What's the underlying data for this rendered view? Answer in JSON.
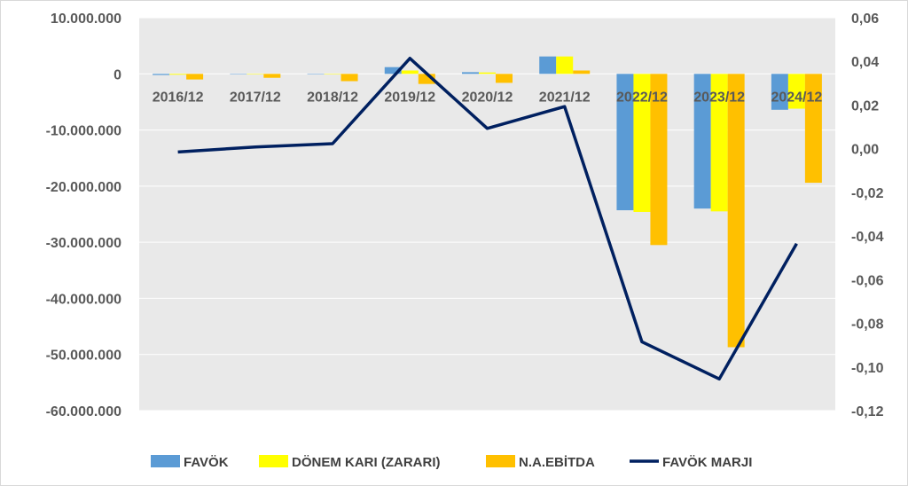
{
  "chart_data": {
    "type": "bar",
    "categories": [
      "2016/12",
      "2017/12",
      "2018/12",
      "2019/12",
      "2020/12",
      "2021/12",
      "2022/12",
      "2023/12",
      "2024/12"
    ],
    "series": [
      {
        "name": "FAVÖK",
        "type": "bar",
        "axis": "left",
        "color": "#5B9BD5",
        "values": [
          -200000,
          0,
          0,
          1200000,
          300000,
          3100000,
          -24300000,
          -24000000,
          -6400000
        ]
      },
      {
        "name": "DÖNEM KARI (ZARARI)",
        "type": "bar",
        "axis": "left",
        "color": "#FFFF00",
        "values": [
          -150000,
          0,
          0,
          600000,
          250000,
          3100000,
          -24600000,
          -24500000,
          -6200000
        ]
      },
      {
        "name": "N.A.EBİTDA",
        "type": "bar",
        "axis": "left",
        "color": "#FFC000",
        "values": [
          -1000000,
          -700000,
          -1300000,
          -1800000,
          -1600000,
          600000,
          -30500000,
          -48700000,
          -19400000
        ]
      },
      {
        "name": "FAVÖK MARJI",
        "type": "line",
        "axis": "right",
        "color": "#002060",
        "values": [
          -0.0015,
          0.0008,
          0.0023,
          0.0414,
          0.0093,
          0.0193,
          -0.0885,
          -0.1055,
          -0.0435
        ]
      }
    ],
    "y_left": {
      "ylim": [
        -60000000,
        10000000
      ],
      "ticks": [
        10000000,
        0,
        -10000000,
        -20000000,
        -30000000,
        -40000000,
        -50000000,
        -60000000
      ],
      "tick_labels": [
        "10.000.000",
        "0",
        "-10.000.000",
        "-20.000.000",
        "-30.000.000",
        "-40.000.000",
        "-50.000.000",
        "-60.000.000"
      ]
    },
    "y_right": {
      "ylim": [
        -0.12,
        0.06
      ],
      "ticks": [
        0.06,
        0.04,
        0.02,
        0.0,
        -0.02,
        -0.04,
        -0.06,
        -0.08,
        -0.1,
        -0.12
      ],
      "tick_labels": [
        "0,06",
        "0,04",
        "0,02",
        "0,00",
        "-0,02",
        "-0,04",
        "-0,06",
        "-0,08",
        "-0,10",
        "-0,12"
      ]
    },
    "grid": true,
    "legend_position": "bottom",
    "colors": {
      "plot_background": "#E9E9E9",
      "gridline": "#FFFFFF",
      "text": "#595959"
    }
  }
}
